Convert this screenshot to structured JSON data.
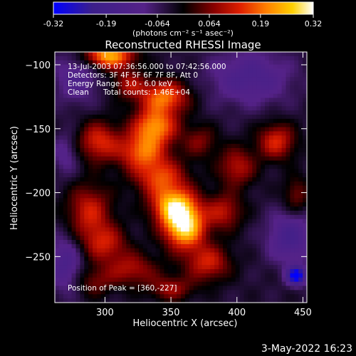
{
  "colorbar": {
    "ticks": [
      "-0.32",
      "-0.19",
      "-0.064",
      "0.064",
      "0.19",
      "0.32"
    ],
    "tick_values": [
      -0.32,
      -0.19,
      -0.064,
      0.064,
      0.19,
      0.32
    ],
    "range": [
      -0.32,
      0.32
    ],
    "units_text": "(photons cm⁻² s⁻¹ asec⁻²)"
  },
  "annotations": {
    "time_range": "13-Jul-2003 07:36:56.000 to 07:42:56.000",
    "detectors": "Detectors: 3F 4F 5F 6F 7F 8F, Att 0",
    "energy": "Energy Range: 3.0 - 6.0 keV",
    "clean_label": "Clean",
    "counts": "Total counts: 1.46E+04",
    "peak": "Position of Peak = [360,-227]"
  },
  "footer": {
    "timestamp": "3-May-2022 16:23"
  },
  "chart_data": {
    "type": "heatmap",
    "title": "Reconstructed RHESSI Image",
    "xlabel": "Heliocentric X (arcsec)",
    "ylabel": "Heliocentric Y (arcsec)",
    "xlim": [
      262,
      453
    ],
    "ylim": [
      -286,
      -90
    ],
    "x_ticks": [
      300,
      350,
      400,
      450
    ],
    "y_ticks": [
      -100,
      -150,
      -200,
      -250
    ],
    "peak_position": [
      360,
      -227
    ],
    "colormap": [
      "#0000ff",
      "#3c1f8a",
      "#552288",
      "#000000",
      "#8b0000",
      "#e02000",
      "#ff8000",
      "#ffd000",
      "#ffffff"
    ],
    "sources": [
      {
        "x": 360,
        "y": -227,
        "amp": 0.32,
        "sx": 11,
        "sy": 12
      },
      {
        "x": 352,
        "y": -210,
        "amp": 0.26,
        "sx": 12,
        "sy": 10
      },
      {
        "x": 342,
        "y": -188,
        "amp": 0.18,
        "sx": 14,
        "sy": 10
      },
      {
        "x": 328,
        "y": -168,
        "amp": 0.2,
        "sx": 13,
        "sy": 10
      },
      {
        "x": 338,
        "y": -148,
        "amp": 0.24,
        "sx": 12,
        "sy": 10
      },
      {
        "x": 345,
        "y": -125,
        "amp": 0.22,
        "sx": 13,
        "sy": 9
      },
      {
        "x": 303,
        "y": -93,
        "amp": 0.28,
        "sx": 13,
        "sy": 7
      },
      {
        "x": 295,
        "y": -160,
        "amp": 0.17,
        "sx": 11,
        "sy": 11
      },
      {
        "x": 288,
        "y": -215,
        "amp": 0.16,
        "sx": 12,
        "sy": 15
      },
      {
        "x": 300,
        "y": -240,
        "amp": 0.14,
        "sx": 12,
        "sy": 10
      },
      {
        "x": 320,
        "y": -260,
        "amp": 0.13,
        "sx": 14,
        "sy": 9
      },
      {
        "x": 378,
        "y": -255,
        "amp": 0.16,
        "sx": 12,
        "sy": 10
      },
      {
        "x": 390,
        "y": -215,
        "amp": 0.14,
        "sx": 10,
        "sy": 10
      },
      {
        "x": 400,
        "y": -180,
        "amp": 0.14,
        "sx": 10,
        "sy": 11
      },
      {
        "x": 430,
        "y": -160,
        "amp": 0.17,
        "sx": 10,
        "sy": 10
      },
      {
        "x": 372,
        "y": -160,
        "amp": 0.1,
        "sx": 9,
        "sy": 9
      },
      {
        "x": 445,
        "y": -202,
        "amp": 0.1,
        "sx": 7,
        "sy": 10
      },
      {
        "x": 292,
        "y": -270,
        "amp": 0.09,
        "sx": 10,
        "sy": 8
      },
      {
        "x": 350,
        "y": -275,
        "amp": 0.12,
        "sx": 12,
        "sy": 7
      },
      {
        "x": 318,
        "y": -115,
        "amp": 0.12,
        "sx": 9,
        "sy": 8
      },
      {
        "x": 278,
        "y": -110,
        "amp": -0.1,
        "sx": 12,
        "sy": 14
      },
      {
        "x": 410,
        "y": -110,
        "amp": -0.12,
        "sx": 22,
        "sy": 15
      },
      {
        "x": 440,
        "y": -235,
        "amp": -0.14,
        "sx": 12,
        "sy": 14
      },
      {
        "x": 445,
        "y": -265,
        "amp": -0.3,
        "sx": 5,
        "sy": 5
      },
      {
        "x": 270,
        "y": -255,
        "amp": -0.12,
        "sx": 9,
        "sy": 16
      },
      {
        "x": 270,
        "y": -170,
        "amp": -0.08,
        "sx": 7,
        "sy": 12
      }
    ]
  }
}
